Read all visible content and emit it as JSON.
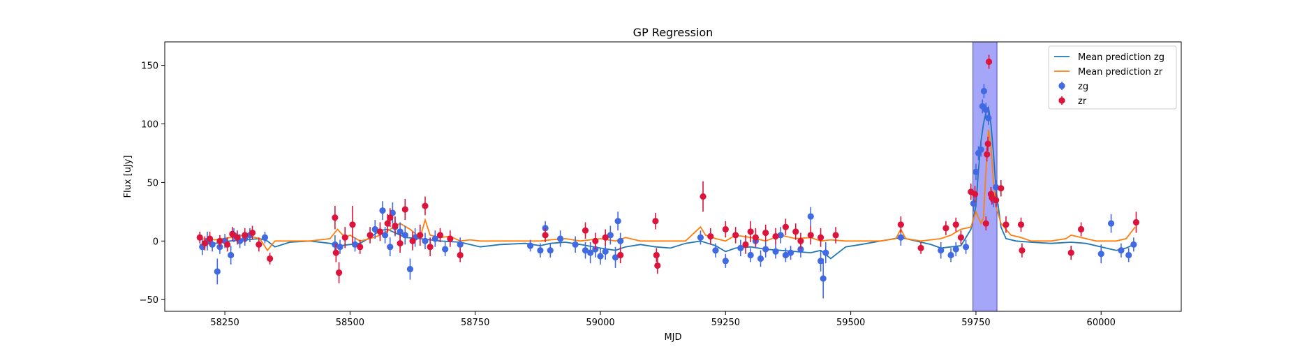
{
  "chart_data": {
    "type": "scatter",
    "title": "GP Regression",
    "xlabel": "MJD",
    "ylabel": "Flux [uJy]",
    "xlim": [
      58130,
      60160
    ],
    "ylim": [
      -60,
      170
    ],
    "xticks": [
      58250,
      58500,
      58750,
      59000,
      59250,
      59500,
      59750,
      60000
    ],
    "yticks": [
      -50,
      0,
      50,
      100,
      150
    ],
    "grid": false,
    "legend_position": "top-right",
    "highlight_region": {
      "x": [
        59744,
        59792
      ],
      "color": "#6a6af5"
    },
    "series": [
      {
        "name": "Mean prediction zg",
        "kind": "line",
        "color": "#1f77b4",
        "x": [
          58200,
          58230,
          58260,
          58290,
          58320,
          58335,
          58350,
          58380,
          58420,
          58460,
          58480,
          58500,
          58520,
          58540,
          58560,
          58575,
          58590,
          58610,
          58640,
          58680,
          58720,
          58760,
          58800,
          58850,
          58880,
          58900,
          58930,
          58960,
          59000,
          59030,
          59050,
          59080,
          59110,
          59140,
          59170,
          59200,
          59230,
          59250,
          59270,
          59300,
          59330,
          59360,
          59390,
          59420,
          59440,
          59460,
          59490,
          59520,
          59560,
          59600,
          59630,
          59660,
          59680,
          59700,
          59720,
          59740,
          59750,
          59755,
          59760,
          59765,
          59770,
          59775,
          59780,
          59785,
          59790,
          59800,
          59810,
          59830,
          59860,
          59900,
          59940,
          59970,
          60000,
          60030,
          60050,
          60065
        ],
        "y": [
          -3,
          -2,
          0,
          1,
          2,
          0,
          -5,
          -1,
          0,
          -2,
          -4,
          -3,
          -2,
          3,
          9,
          10,
          7,
          3,
          2,
          0,
          -1,
          -5,
          -3,
          -2,
          -4,
          -2,
          -1,
          -3,
          -6,
          -8,
          -5,
          -3,
          -5,
          -6,
          -2,
          0,
          -4,
          -9,
          -6,
          -5,
          -7,
          -8,
          -9,
          -10,
          -8,
          -15,
          -5,
          -3,
          0,
          3,
          0,
          -3,
          -6,
          -5,
          -4,
          10,
          30,
          60,
          85,
          100,
          110,
          114,
          100,
          75,
          45,
          12,
          2,
          0,
          -1,
          -2,
          -1,
          -2,
          -5,
          -8,
          -6,
          -3
        ]
      },
      {
        "name": "Mean prediction zr",
        "kind": "line",
        "color": "#ff7f0e",
        "x": [
          58200,
          58230,
          58260,
          58290,
          58320,
          58335,
          58350,
          58380,
          58420,
          58460,
          58475,
          58490,
          58500,
          58520,
          58540,
          58560,
          58580,
          58600,
          58620,
          58640,
          58650,
          58660,
          58680,
          58700,
          58720,
          58740,
          58760,
          58800,
          58850,
          58880,
          58900,
          58930,
          58960,
          59000,
          59030,
          59050,
          59080,
          59110,
          59140,
          59170,
          59200,
          59210,
          59230,
          59250,
          59270,
          59300,
          59330,
          59360,
          59390,
          59420,
          59440,
          59460,
          59490,
          59520,
          59560,
          59590,
          59600,
          59610,
          59640,
          59680,
          59700,
          59720,
          59740,
          59750,
          59760,
          59765,
          59770,
          59775,
          59780,
          59785,
          59790,
          59800,
          59820,
          59840,
          59860,
          59900,
          59930,
          59940,
          59960,
          59990,
          60030,
          60050,
          60068
        ],
        "y": [
          2,
          1,
          3,
          5,
          2,
          -8,
          0,
          0,
          0,
          2,
          10,
          3,
          5,
          0,
          2,
          5,
          10,
          15,
          10,
          3,
          18,
          5,
          3,
          4,
          0,
          1,
          0,
          0,
          0,
          0,
          1,
          2,
          0,
          2,
          0,
          3,
          0,
          0,
          0,
          0,
          12,
          5,
          2,
          0,
          5,
          3,
          0,
          5,
          2,
          3,
          0,
          1,
          0,
          0,
          0,
          2,
          10,
          2,
          0,
          2,
          5,
          10,
          12,
          25,
          15,
          20,
          60,
          95,
          80,
          50,
          30,
          15,
          5,
          3,
          0,
          0,
          2,
          5,
          3,
          0,
          0,
          2,
          12
        ]
      },
      {
        "name": "zg",
        "kind": "scatter",
        "color": "#4169e1",
        "x": [
          58205,
          58215,
          58225,
          58235,
          58240,
          58250,
          58262,
          58268,
          58280,
          58290,
          58300,
          58330,
          58470,
          58480,
          58510,
          58550,
          58565,
          58570,
          58580,
          58585,
          58590,
          58600,
          58610,
          58620,
          58630,
          58650,
          58670,
          58690,
          58720,
          58860,
          58880,
          58890,
          58900,
          58920,
          58950,
          58970,
          58980,
          58990,
          59000,
          59010,
          59020,
          59030,
          59035,
          59040,
          59200,
          59230,
          59250,
          59280,
          59300,
          59310,
          59320,
          59330,
          59350,
          59360,
          59370,
          59380,
          59400,
          59420,
          59440,
          59445,
          59450,
          59600,
          59680,
          59700,
          59710,
          59730,
          59745,
          59750,
          59755,
          59760,
          59763,
          59766,
          59770,
          59775,
          59780,
          59785,
          59790,
          60000,
          60020,
          60040,
          60055,
          60065
        ],
        "y": [
          -5,
          0,
          -3,
          -26,
          -5,
          0,
          -12,
          5,
          0,
          2,
          5,
          3,
          -3,
          -5,
          -3,
          10,
          26,
          5,
          -5,
          24,
          12,
          8,
          5,
          -24,
          3,
          0,
          2,
          -7,
          -3,
          -4,
          -8,
          11,
          -8,
          2,
          -3,
          -8,
          -10,
          -7,
          -13,
          -9,
          5,
          -14,
          17,
          0,
          3,
          -8,
          -17,
          -6,
          -12,
          0,
          -15,
          -7,
          -9,
          5,
          -12,
          -10,
          -7,
          21,
          -17,
          -32,
          -10,
          3,
          -8,
          -12,
          -7,
          -5,
          32,
          59,
          75,
          78,
          115,
          128,
          112,
          105,
          40,
          35,
          46,
          -11,
          15,
          -8,
          -12,
          -3
        ],
        "yerr": [
          7,
          8,
          6,
          11,
          6,
          6,
          8,
          6,
          6,
          6,
          6,
          5,
          8,
          6,
          6,
          8,
          8,
          7,
          8,
          9,
          8,
          8,
          8,
          9,
          8,
          7,
          7,
          6,
          6,
          5,
          6,
          6,
          6,
          7,
          7,
          7,
          9,
          7,
          7,
          7,
          8,
          9,
          8,
          7,
          6,
          6,
          6,
          7,
          6,
          6,
          7,
          7,
          6,
          7,
          6,
          6,
          7,
          8,
          9,
          17,
          9,
          7,
          7,
          6,
          6,
          6,
          7,
          7,
          6,
          6,
          6,
          6,
          6,
          6,
          6,
          6,
          6,
          8,
          8,
          6,
          6,
          6
        ]
      },
      {
        "name": "zr",
        "kind": "scatter",
        "color": "#dc143c",
        "x": [
          58200,
          58210,
          58220,
          58240,
          58255,
          58265,
          58275,
          58290,
          58305,
          58318,
          58340,
          58470,
          58472,
          58478,
          58490,
          58505,
          58520,
          58540,
          58560,
          58575,
          58580,
          58590,
          58600,
          58610,
          58625,
          58640,
          58650,
          58660,
          58680,
          58700,
          58720,
          58890,
          58970,
          58990,
          59010,
          59040,
          59110,
          59112,
          59114,
          59205,
          59220,
          59250,
          59270,
          59290,
          59300,
          59310,
          59330,
          59350,
          59370,
          59390,
          59400,
          59420,
          59440,
          59470,
          59600,
          59640,
          59690,
          59710,
          59720,
          59740,
          59748,
          59770,
          59772,
          59774,
          59776,
          59780,
          59782,
          59790,
          59800,
          59810,
          59840,
          59842,
          59940,
          59960,
          60070
        ],
        "y": [
          3,
          -2,
          2,
          0,
          -3,
          6,
          3,
          5,
          7,
          -3,
          -15,
          20,
          -10,
          -27,
          3,
          14,
          -5,
          5,
          8,
          15,
          20,
          13,
          -2,
          27,
          0,
          5,
          30,
          -5,
          5,
          2,
          -12,
          5,
          9,
          0,
          3,
          -12,
          17,
          -12,
          -21,
          38,
          4,
          10,
          5,
          -3,
          8,
          3,
          7,
          4,
          12,
          8,
          0,
          5,
          3,
          5,
          14,
          -6,
          11,
          14,
          3,
          42,
          40,
          15,
          74,
          83,
          153,
          40,
          37,
          35,
          45,
          14,
          14,
          -8,
          -10,
          10,
          16
        ],
        "yerr": [
          5,
          6,
          6,
          5,
          6,
          6,
          6,
          6,
          6,
          6,
          5,
          10,
          8,
          9,
          9,
          16,
          6,
          7,
          8,
          8,
          8,
          8,
          8,
          9,
          8,
          9,
          8,
          8,
          6,
          7,
          6,
          6,
          7,
          7,
          7,
          7,
          7,
          6,
          7,
          13,
          7,
          7,
          7,
          8,
          9,
          8,
          7,
          7,
          7,
          7,
          7,
          8,
          8,
          7,
          7,
          5,
          6,
          6,
          6,
          7,
          7,
          6,
          6,
          6,
          6,
          6,
          6,
          6,
          7,
          7,
          6,
          6,
          6,
          6,
          9
        ]
      }
    ]
  }
}
